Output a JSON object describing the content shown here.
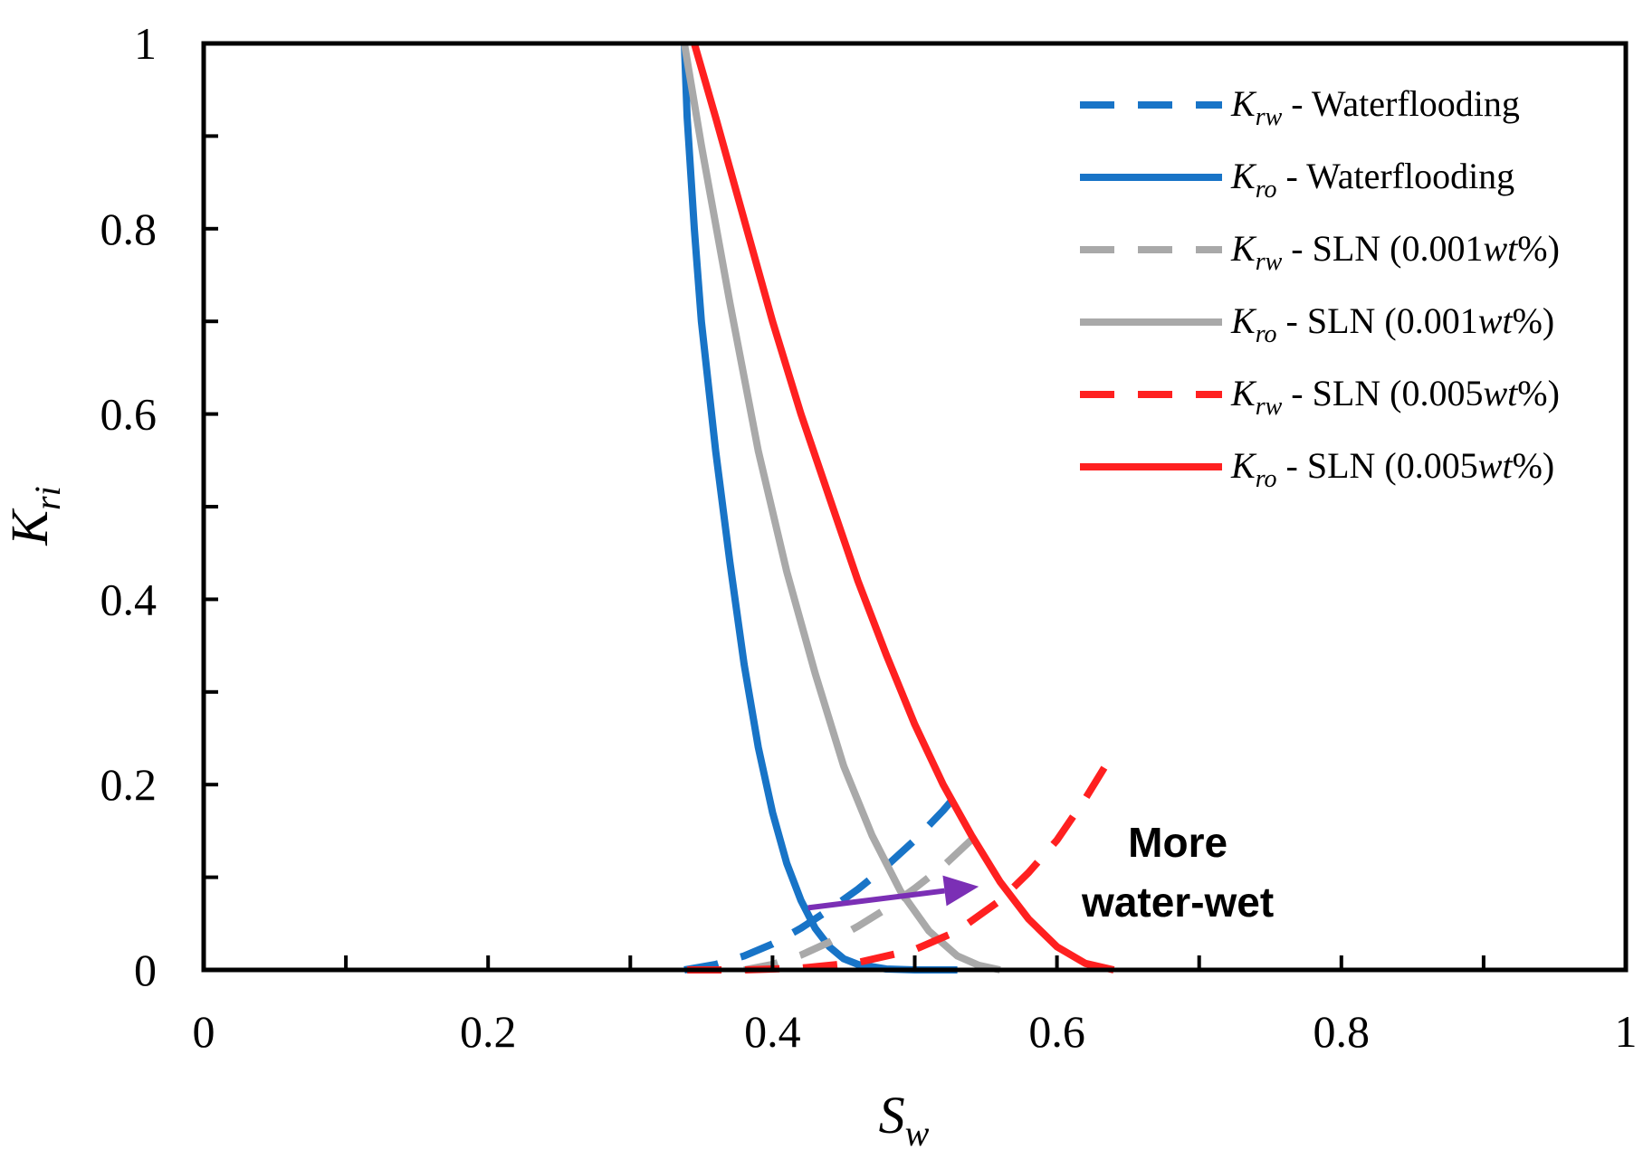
{
  "chart_data": {
    "type": "line",
    "xlabel": {
      "main": "S",
      "sub": "w"
    },
    "ylabel": {
      "main": "K",
      "sub": "ri"
    },
    "xlim": [
      0,
      1
    ],
    "ylim": [
      0,
      1
    ],
    "xticks": [
      0,
      0.2,
      0.4,
      0.6,
      0.8,
      1
    ],
    "xtick_labels": [
      "0",
      "0.2",
      "0.4",
      "0.6",
      "0.8",
      "1"
    ],
    "yticks": [
      0,
      0.2,
      0.4,
      0.6,
      0.8,
      1
    ],
    "ytick_labels": [
      "0",
      "0.2",
      "0.4",
      "0.6",
      "0.8",
      "1"
    ],
    "x_minor_step": 0.1,
    "y_minor_step": 0.1,
    "grid": false,
    "legend_position": "top-right",
    "series": [
      {
        "name": "K_rw - Waterflooding",
        "label_main": "K",
        "label_sub": "rw",
        "label_rest": " - Waterflooding",
        "label_unit": "",
        "color": "#1874c7",
        "style": "dashed",
        "x": [
          0.338,
          0.36,
          0.38,
          0.4,
          0.42,
          0.44,
          0.46,
          0.48,
          0.5,
          0.52,
          0.53
        ],
        "y": [
          0.0,
          0.006,
          0.015,
          0.028,
          0.045,
          0.065,
          0.087,
          0.112,
          0.14,
          0.172,
          0.19
        ]
      },
      {
        "name": "K_ro - Waterflooding",
        "label_main": "K",
        "label_sub": "ro",
        "label_rest": " - Waterflooding",
        "label_unit": "",
        "color": "#1874c7",
        "style": "solid",
        "x": [
          0.338,
          0.34,
          0.345,
          0.35,
          0.36,
          0.37,
          0.38,
          0.39,
          0.4,
          0.41,
          0.42,
          0.43,
          0.44,
          0.45,
          0.46,
          0.48,
          0.5,
          0.53
        ],
        "y": [
          1.0,
          0.92,
          0.8,
          0.7,
          0.56,
          0.44,
          0.33,
          0.24,
          0.17,
          0.115,
          0.075,
          0.045,
          0.025,
          0.012,
          0.006,
          0.001,
          0.0,
          0.0
        ]
      },
      {
        "name": "K_rw - SLN (0.001wt%)",
        "label_main": "K",
        "label_sub": "rw",
        "label_rest": " - SLN (0.001",
        "label_unit": "wt",
        "color": "#a9a9a9",
        "style": "dashed",
        "x": [
          0.38,
          0.4,
          0.42,
          0.44,
          0.46,
          0.48,
          0.5,
          0.52,
          0.55
        ],
        "y": [
          0.0,
          0.006,
          0.016,
          0.03,
          0.047,
          0.066,
          0.088,
          0.112,
          0.155
        ]
      },
      {
        "name": "K_ro - SLN (0.001wt%)",
        "label_main": "K",
        "label_sub": "ro",
        "label_rest": " - SLN (0.001",
        "label_unit": "wt",
        "color": "#a9a9a9",
        "style": "solid",
        "x": [
          0.338,
          0.35,
          0.37,
          0.39,
          0.41,
          0.43,
          0.45,
          0.47,
          0.49,
          0.51,
          0.53,
          0.545,
          0.56
        ],
        "y": [
          1.0,
          0.89,
          0.72,
          0.56,
          0.43,
          0.32,
          0.22,
          0.145,
          0.085,
          0.042,
          0.015,
          0.005,
          0.0
        ]
      },
      {
        "name": "K_rw - SLN (0.005wt%)",
        "label_main": "K",
        "label_sub": "rw",
        "label_rest": " - SLN (0.005",
        "label_unit": "wt",
        "color": "#ff2020",
        "style": "dashed",
        "x": [
          0.34,
          0.38,
          0.42,
          0.46,
          0.5,
          0.53,
          0.56,
          0.58,
          0.6,
          0.62,
          0.64
        ],
        "y": [
          0.0,
          0.0,
          0.002,
          0.008,
          0.022,
          0.042,
          0.075,
          0.105,
          0.14,
          0.185,
          0.235
        ]
      },
      {
        "name": "K_ro - SLN (0.005wt%)",
        "label_main": "K",
        "label_sub": "ro",
        "label_rest": " - SLN (0.005",
        "label_unit": "wt",
        "color": "#ff2020",
        "style": "solid",
        "x": [
          0.345,
          0.36,
          0.38,
          0.4,
          0.42,
          0.44,
          0.46,
          0.48,
          0.5,
          0.52,
          0.54,
          0.56,
          0.58,
          0.6,
          0.62,
          0.64
        ],
        "y": [
          1.0,
          0.92,
          0.81,
          0.7,
          0.6,
          0.51,
          0.42,
          0.34,
          0.265,
          0.2,
          0.145,
          0.095,
          0.055,
          0.025,
          0.007,
          0.0
        ]
      }
    ],
    "annotations": [
      {
        "text_lines": [
          "More",
          "water-wet"
        ],
        "arrow_color": "#7b2fb5",
        "arrow_from": [
          0.425,
          0.067
        ],
        "arrow_to": [
          0.545,
          0.09
        ]
      }
    ]
  }
}
